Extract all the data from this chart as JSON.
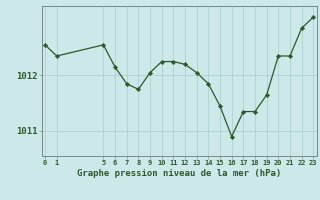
{
  "x": [
    0,
    1,
    5,
    6,
    7,
    8,
    9,
    10,
    11,
    12,
    13,
    14,
    15,
    16,
    17,
    18,
    19,
    20,
    21,
    22,
    23
  ],
  "y": [
    1012.55,
    1012.35,
    1012.55,
    1012.15,
    1011.85,
    1011.75,
    1012.05,
    1012.25,
    1012.25,
    1012.2,
    1012.05,
    1011.85,
    1011.45,
    1010.9,
    1011.35,
    1011.35,
    1011.65,
    1012.35,
    1012.35,
    1012.85,
    1013.05
  ],
  "x_ticks": [
    0,
    1,
    5,
    6,
    7,
    8,
    9,
    10,
    11,
    12,
    13,
    14,
    15,
    16,
    17,
    18,
    19,
    20,
    21,
    22,
    23
  ],
  "x_tick_labels": [
    "0",
    "1",
    "5",
    "6",
    "7",
    "8",
    "9",
    "10",
    "11",
    "12",
    "13",
    "14",
    "15",
    "16",
    "17",
    "18",
    "19",
    "20",
    "21",
    "22",
    "23"
  ],
  "y_ticks": [
    1011.0,
    1012.0
  ],
  "ylim_min": 1010.55,
  "ylim_max": 1013.25,
  "xlim_min": -0.3,
  "xlim_max": 23.3,
  "line_color": "#2d5a27",
  "marker": "D",
  "marker_size": 2.2,
  "bg_color": "#cce8e8",
  "grid_color": "#aacccc",
  "tick_label_color": "#2d5a27",
  "xlabel": "Graphe pression niveau de la mer (hPa)",
  "xlabel_color": "#2d5a27",
  "fig_bg": "#cce8e8"
}
